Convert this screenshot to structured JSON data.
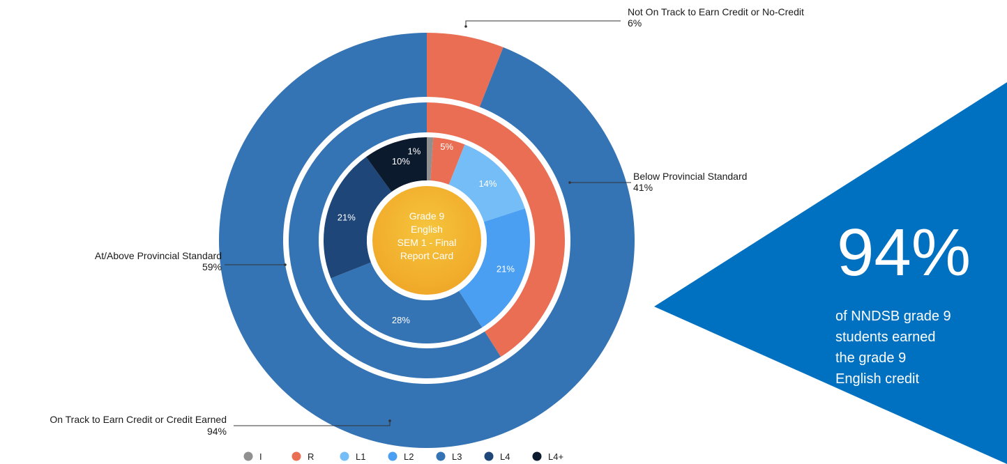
{
  "chart_data": {
    "type": "pie",
    "center_label": [
      "Grade 9",
      "English",
      "SEM 1 - Final",
      "Report Card"
    ],
    "rings": [
      {
        "name": "credit",
        "slices": [
          {
            "label": "Not On Track to Earn Credit or No-Credit",
            "value": 6,
            "display": "6%",
            "color": "#E96E53"
          },
          {
            "label": "On Track to Earn Credit or Credit Earned",
            "value": 94,
            "display": "94%",
            "color": "#3473B4"
          }
        ]
      },
      {
        "name": "standard",
        "slices": [
          {
            "label": "Below Provincial Standard",
            "value": 41,
            "display": "41%",
            "color": "#E96E53"
          },
          {
            "label": "At/Above Provincial Standard",
            "value": 59,
            "display": "59%",
            "color": "#3473B4"
          }
        ]
      },
      {
        "name": "level",
        "slices": [
          {
            "label": "I",
            "value": 1,
            "display": "1%",
            "color": "#909090"
          },
          {
            "label": "R",
            "value": 5,
            "display": "5%",
            "color": "#E96E53"
          },
          {
            "label": "L1",
            "value": 14,
            "display": "14%",
            "color": "#75BDF7"
          },
          {
            "label": "L2",
            "value": 21,
            "display": "21%",
            "color": "#4A9FF2"
          },
          {
            "label": "L3",
            "value": 28,
            "display": "28%",
            "color": "#3473B4"
          },
          {
            "label": "L4",
            "value": 21,
            "display": "21%",
            "color": "#1E4679"
          },
          {
            "label": "L4+",
            "value": 10,
            "display": "10%",
            "color": "#0C1A2E"
          }
        ]
      }
    ],
    "legend": [
      {
        "label": "I",
        "color": "#909090"
      },
      {
        "label": "R",
        "color": "#E96E53"
      },
      {
        "label": "L1",
        "color": "#75BDF7"
      },
      {
        "label": "L2",
        "color": "#4A9FF2"
      },
      {
        "label": "L3",
        "color": "#3473B4"
      },
      {
        "label": "L4",
        "color": "#1E4679"
      },
      {
        "label": "L4+",
        "color": "#0C1A2E"
      }
    ]
  },
  "callout": {
    "percent": "94%",
    "text_lines": [
      "of NNDSB grade 9",
      "students earned",
      "the grade 9",
      "English credit"
    ],
    "color": "#0070C0"
  }
}
